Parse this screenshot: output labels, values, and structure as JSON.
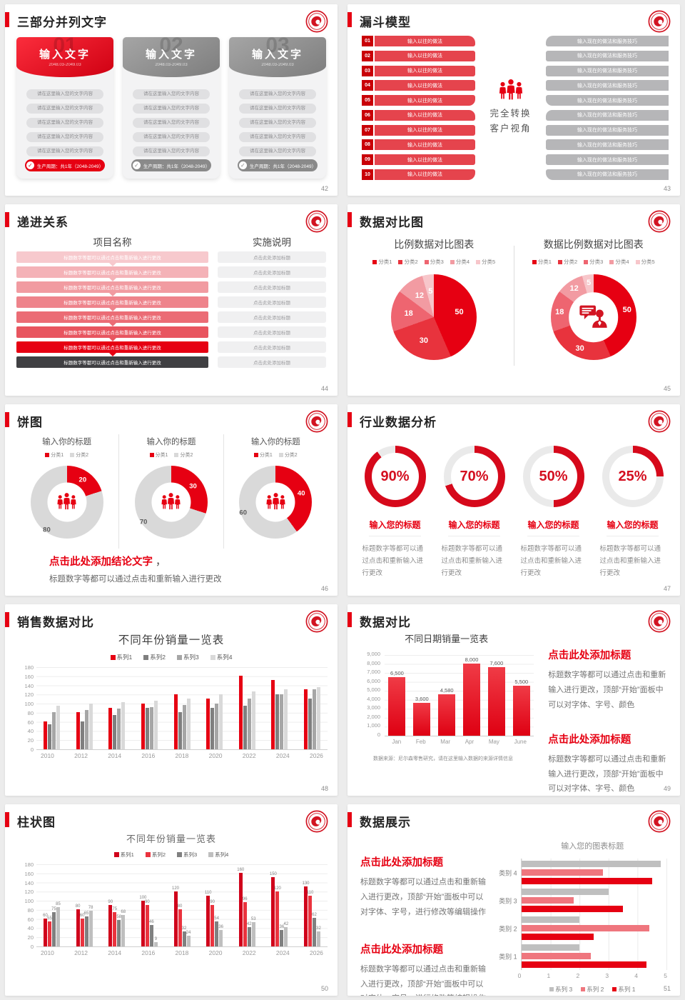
{
  "brand": {
    "red": "#e60012",
    "dark_red": "#c90007",
    "logo": "circular-red-seal"
  },
  "s42": {
    "title": "三部分并列文字",
    "page": "42",
    "item_text": "请在这里输入您的文字内容",
    "footer_text": "生产周期：共1年（2048-2049）",
    "cards": [
      {
        "num": "01",
        "header": "输入文字",
        "date": "2048.03-2049.03",
        "accent": "red"
      },
      {
        "num": "02",
        "header": "输入文字",
        "date": "2048.03-2049.03",
        "accent": "gray"
      },
      {
        "num": "03",
        "header": "输入文字",
        "date": "2048.03-2049.03",
        "accent": "gray"
      }
    ]
  },
  "s43": {
    "title": "漏斗模型",
    "page": "43",
    "numbers": [
      "01",
      "02",
      "03",
      "04",
      "05",
      "06",
      "07",
      "08",
      "09",
      "10"
    ],
    "left_text": "输入以往的做法",
    "right_text": "输入现在的做法和服务技巧",
    "center_line1": "完全转换",
    "center_line2": "客户视角"
  },
  "s44": {
    "title": "递进关系",
    "page": "44",
    "col1_header": "项目名称",
    "col2_header": "实施说明",
    "row_text": "标题数字等都可以通过点击和重新输入进行更改",
    "note_text": "点击此处添加标题",
    "row_colors": [
      "#f7c9cd",
      "#f4b2b7",
      "#f19ba1",
      "#ee838b",
      "#eb6c75",
      "#e8555f",
      "#e60012",
      "#404043"
    ]
  },
  "s45": {
    "title": "数据对比图",
    "page": "45",
    "legend": [
      "分类1",
      "分类2",
      "分类3",
      "分类4",
      "分类5"
    ],
    "colors": [
      "#e60012",
      "#e8333d",
      "#ee6570",
      "#f29ba2",
      "#f7c6ca"
    ],
    "chart_data": [
      {
        "type": "pie",
        "title": "比例数据对比图表",
        "categories": [
          "分类1",
          "分类2",
          "分类3",
          "分类4",
          "分类5"
        ],
        "values": [
          50,
          30,
          18,
          12,
          5
        ]
      },
      {
        "type": "donut",
        "title": "数据比例数据对比图表",
        "categories": [
          "分类1",
          "分类2",
          "分类3",
          "分类4",
          "分类5"
        ],
        "values": [
          50,
          30,
          18,
          12,
          5
        ]
      }
    ]
  },
  "s46": {
    "title": "饼图",
    "page": "46",
    "chart_title": "输入你的标题",
    "legend": [
      "分类1",
      "分类2"
    ],
    "chart_data": [
      {
        "type": "donut",
        "values": [
          20,
          80
        ]
      },
      {
        "type": "donut",
        "values": [
          30,
          70
        ]
      },
      {
        "type": "donut",
        "values": [
          40,
          60
        ]
      }
    ],
    "conclusion_title": "点击此处添加结论文字",
    "conclusion_comma": " ，",
    "conclusion_text": "标题数字等都可以通过点击和重新输入进行更改"
  },
  "s47": {
    "title": "行业数据分析",
    "page": "47",
    "percents": [
      90,
      70,
      50,
      25
    ],
    "item_title": "输入您的标题",
    "item_text": "标题数字等都可以通过点击和重新输入进行更改"
  },
  "s48": {
    "title": "销售数据对比",
    "page": "48",
    "chart_data": {
      "type": "bar",
      "title": "不同年份销量一览表",
      "categories": [
        "2010",
        "2012",
        "2014",
        "2016",
        "2018",
        "2020",
        "2022",
        "2024",
        "2026"
      ],
      "series": [
        {
          "name": "系列1",
          "color": "#e60012",
          "values": [
            60,
            80,
            90,
            100,
            120,
            110,
            160,
            150,
            130
          ]
        },
        {
          "name": "系列2",
          "color": "#7f7f7f",
          "values": [
            55,
            60,
            75,
            90,
            80,
            90,
            95,
            120,
            110
          ]
        },
        {
          "name": "系列3",
          "color": "#a6a6a6",
          "values": [
            80,
            85,
            88,
            92,
            97,
            100,
            110,
            120,
            130
          ]
        },
        {
          "name": "系列4",
          "color": "#d9d9d9",
          "values": [
            95,
            100,
            102,
            105,
            110,
            120,
            125,
            130,
            135
          ]
        }
      ],
      "ylim": [
        0,
        180
      ],
      "y_step": 20,
      "grid": true,
      "legend_position": "top"
    }
  },
  "s49": {
    "title": "数据对比",
    "page": "49",
    "chart_data": {
      "type": "bar",
      "title": "不同日期销量一览表",
      "categories": [
        "Jan",
        "Feb",
        "Mar",
        "Apr",
        "May",
        "June"
      ],
      "values": [
        6500,
        3600,
        4580,
        8000,
        7600,
        5500
      ],
      "labels": [
        "6,500",
        "3,600",
        "4,580",
        "8,000",
        "7,600",
        "5,500"
      ],
      "ylim": [
        0,
        9000
      ],
      "y_step": 1000,
      "grid": true
    },
    "source": "数据来源：尼尔森零售研究，请在这里输入数据的来源详情信息",
    "blocks": [
      {
        "heading": "点击此处添加标题",
        "text": "标题数字等都可以通过点击和重新输入进行更改，顶部“开始”面板中可以对字体、字号、颜色"
      },
      {
        "heading": "点击此处添加标题",
        "text": "标题数字等都可以通过点击和重新输入进行更改，顶部“开始”面板中可以对字体、字号、颜色"
      }
    ]
  },
  "s50": {
    "title": "柱状图",
    "page": "50",
    "chart_data": {
      "type": "bar",
      "title": "不同年份销量一览表",
      "categories": [
        "2010",
        "2012",
        "2014",
        "2016",
        "2018",
        "2020",
        "2022",
        "2024",
        "2026"
      ],
      "series": [
        {
          "name": "系列1",
          "color": "#d0021b",
          "values": [
            60,
            80,
            90,
            100,
            120,
            110,
            160,
            150,
            130
          ]
        },
        {
          "name": "系列2",
          "color": "#ea333e",
          "values": [
            55,
            60,
            75,
            90,
            80,
            90,
            96,
            120,
            110
          ]
        },
        {
          "name": "系列3",
          "color": "#808080",
          "values": [
            75,
            65,
            58,
            46,
            32,
            54,
            42,
            36,
            62
          ]
        },
        {
          "name": "系列4",
          "color": "#bfbfbf",
          "values": [
            85,
            78,
            68,
            9,
            24,
            36,
            53,
            42,
            32
          ]
        }
      ],
      "ylim": [
        0,
        180
      ],
      "y_step": 20,
      "grid": true,
      "data_labels": true,
      "legend_position": "top"
    }
  },
  "s51": {
    "title": "数据展示",
    "page": "51",
    "blocks": [
      {
        "heading": "点击此处添加标题",
        "text": "标题数字等都可以通过点击和重新输入进行更改，顶部“开始”面板中可以对字体、字号，进行修改等编辑操作"
      },
      {
        "heading": "点击此处添加标题",
        "text": "标题数字等都可以通过点击和重新输入进行更改，顶部“开始”面板中可以对字体、字号，进行修改等编辑操作"
      }
    ],
    "chart_data": {
      "type": "bar",
      "orientation": "horizontal",
      "title": "输入您的图表标题",
      "categories": [
        "类别 4",
        "类别 3",
        "类别 2",
        "类别 1"
      ],
      "series": [
        {
          "name": "系列 3",
          "color": "#bfbfbf",
          "values": [
            4.8,
            3.0,
            2.0,
            2.0
          ]
        },
        {
          "name": "系列 2",
          "color": "#ef767e",
          "values": [
            2.8,
            1.8,
            4.4,
            2.4
          ]
        },
        {
          "name": "系列 1",
          "color": "#e60012",
          "values": [
            4.5,
            3.5,
            2.5,
            4.3
          ]
        }
      ],
      "xlim": [
        0,
        5
      ],
      "x_step": 1,
      "grid": true,
      "legend_position": "bottom"
    }
  }
}
